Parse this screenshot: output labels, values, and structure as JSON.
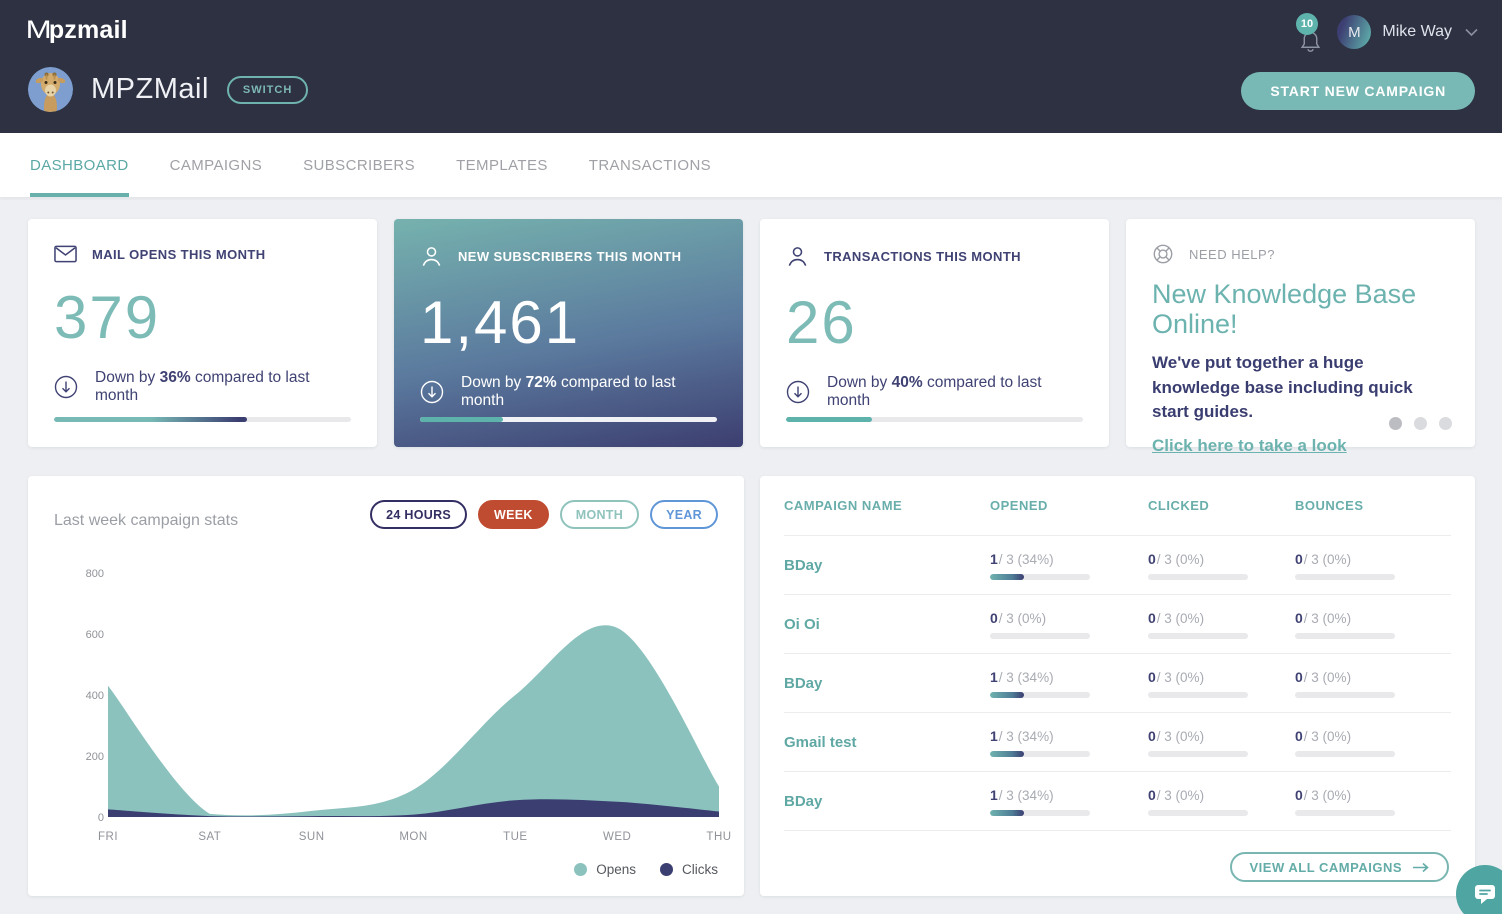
{
  "colors": {
    "accent_teal": "#6fb3af",
    "navy": "#3f4273",
    "header_bg": "#2d3142",
    "red": "#bf4b30",
    "blue": "#5f96d8"
  },
  "header": {
    "logo_m": "M",
    "logo_rest": "pzmail",
    "notification_count": "10",
    "user_initial": "M",
    "user_name": "Mike Way",
    "account_name": "MPZMail",
    "switch_label": "SWITCH",
    "start_campaign_label": "START NEW CAMPAIGN"
  },
  "nav": {
    "active": "DASHBOARD",
    "tabs": [
      {
        "label": "DASHBOARD"
      },
      {
        "label": "CAMPAIGNS"
      },
      {
        "label": "SUBSCRIBERS"
      },
      {
        "label": "TEMPLATES"
      },
      {
        "label": "TRANSACTIONS"
      }
    ]
  },
  "stats": [
    {
      "label": "MAIL OPENS THIS MONTH",
      "value": "379",
      "change_prefix": "Down by ",
      "change_pct": "36%",
      "change_suffix": " compared to last month",
      "progress_pct": 65
    },
    {
      "label": "NEW SUBSCRIBERS THIS MONTH",
      "value": "1,461",
      "change_prefix": "Down by ",
      "change_pct": "72%",
      "change_suffix": " compared to last month",
      "progress_pct": 28
    },
    {
      "label": "TRANSACTIONS THIS MONTH",
      "value": "26",
      "change_prefix": "Down by ",
      "change_pct": "40%",
      "change_suffix": " compared to last month",
      "progress_pct": 29
    }
  ],
  "help_card": {
    "eyebrow": "NEED HELP?",
    "title_line1": "New Knowledge Base",
    "title_line2": "Online!",
    "body": "We've put together a huge knowledge base including quick start guides.",
    "link_label": "Click here to take a look",
    "dot_count": 3
  },
  "chart_card": {
    "title": "Last week campaign stats",
    "filters": [
      "24 HOURS",
      "WEEK",
      "MONTH",
      "YEAR"
    ],
    "active_filter": "WEEK"
  },
  "chart_data": {
    "type": "area",
    "title": "Last week campaign stats",
    "x": [
      "FRI",
      "SAT",
      "SUN",
      "MON",
      "TUE",
      "WED",
      "THU"
    ],
    "series": [
      {
        "name": "Opens",
        "color": "#8cc2be",
        "values": [
          430,
          10,
          20,
          90,
          400,
          620,
          100
        ]
      },
      {
        "name": "Clicks",
        "color": "#3b3e71",
        "values": [
          25,
          3,
          3,
          8,
          55,
          50,
          18
        ]
      }
    ],
    "ylim": [
      0,
      800
    ],
    "yticks": [
      0,
      200,
      400,
      600,
      800
    ],
    "grid": false,
    "legend_position": "bottom-right"
  },
  "table": {
    "headers": [
      "CAMPAIGN NAME",
      "OPENED",
      "CLICKED",
      "BOUNCES"
    ],
    "rows": [
      {
        "name": "BDay",
        "opened": {
          "num": "1",
          "rest": "/ 3 (34%)",
          "pct": 34
        },
        "clicked": {
          "num": "0",
          "rest": "/ 3 (0%)",
          "pct": 0
        },
        "bounces": {
          "num": "0",
          "rest": "/ 3 (0%)",
          "pct": 0
        }
      },
      {
        "name": "Oi Oi",
        "opened": {
          "num": "0",
          "rest": "/ 3 (0%)",
          "pct": 0
        },
        "clicked": {
          "num": "0",
          "rest": "/ 3 (0%)",
          "pct": 0
        },
        "bounces": {
          "num": "0",
          "rest": "/ 3 (0%)",
          "pct": 0
        }
      },
      {
        "name": "BDay",
        "opened": {
          "num": "1",
          "rest": "/ 3 (34%)",
          "pct": 34
        },
        "clicked": {
          "num": "0",
          "rest": "/ 3 (0%)",
          "pct": 0
        },
        "bounces": {
          "num": "0",
          "rest": "/ 3 (0%)",
          "pct": 0
        }
      },
      {
        "name": "Gmail test",
        "opened": {
          "num": "1",
          "rest": "/ 3 (34%)",
          "pct": 34
        },
        "clicked": {
          "num": "0",
          "rest": "/ 3 (0%)",
          "pct": 0
        },
        "bounces": {
          "num": "0",
          "rest": "/ 3 (0%)",
          "pct": 0
        }
      },
      {
        "name": "BDay",
        "opened": {
          "num": "1",
          "rest": "/ 3 (34%)",
          "pct": 34
        },
        "clicked": {
          "num": "0",
          "rest": "/ 3 (0%)",
          "pct": 0
        },
        "bounces": {
          "num": "0",
          "rest": "/ 3 (0%)",
          "pct": 0
        }
      }
    ],
    "view_all_label": "VIEW ALL CAMPAIGNS"
  }
}
